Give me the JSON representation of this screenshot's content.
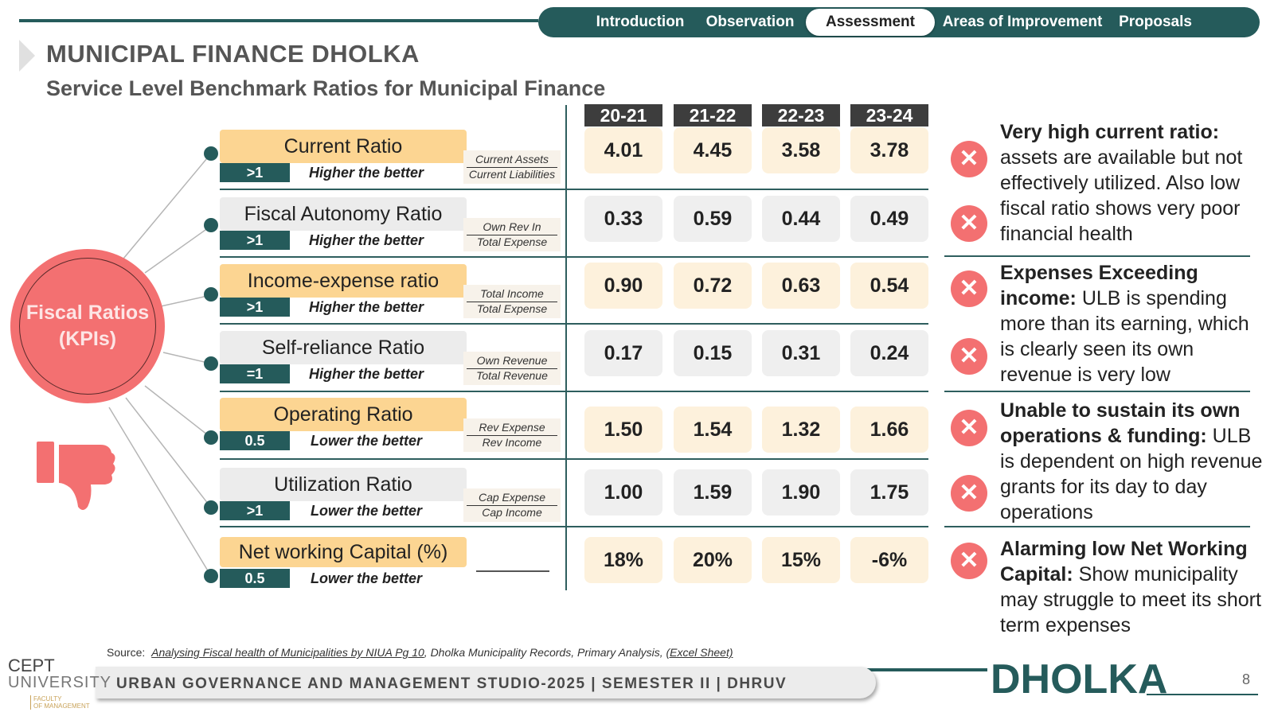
{
  "nav": {
    "items": [
      "Introduction",
      "Observation",
      "Assessment",
      "Areas of Improvement",
      "Proposals"
    ],
    "active": "Assessment"
  },
  "header": {
    "title": "MUNICIPAL FINANCE DHOLKA",
    "subtitle": "Service Level Benchmark Ratios for Municipal Finance"
  },
  "years": [
    "20-21",
    "21-22",
    "22-23",
    "23-24"
  ],
  "kpi_label": "Fiscal Ratios (KPIs)",
  "ratios": [
    {
      "name": "Current Ratio",
      "benchmark": ">1",
      "direction": "Higher the better",
      "numerator": "Current Assets",
      "denominator": "Current Liabilities",
      "values": [
        "4.01",
        "4.45",
        "3.58",
        "3.78"
      ]
    },
    {
      "name": "Fiscal Autonomy Ratio",
      "benchmark": ">1",
      "direction": "Higher the better",
      "numerator": "Own Rev In",
      "denominator": "Total Expense",
      "values": [
        "0.33",
        "0.59",
        "0.44",
        "0.49"
      ]
    },
    {
      "name": "Income-expense ratio",
      "benchmark": ">1",
      "direction": "Higher the better",
      "numerator": "Total Income",
      "denominator": "Total Expense",
      "values": [
        "0.90",
        "0.72",
        "0.63",
        "0.54"
      ]
    },
    {
      "name": "Self-reliance Ratio",
      "benchmark": "=1",
      "direction": "Higher the better",
      "numerator": "Own Revenue",
      "denominator": "Total Revenue",
      "values": [
        "0.17",
        "0.15",
        "0.31",
        "0.24"
      ]
    },
    {
      "name": "Operating Ratio",
      "benchmark": "0.5",
      "direction": "Lower the better",
      "numerator": "Rev Expense",
      "denominator": "Rev Income",
      "values": [
        "1.50",
        "1.54",
        "1.32",
        "1.66"
      ]
    },
    {
      "name": "Utilization Ratio",
      "benchmark": ">1",
      "direction": "Lower the better",
      "numerator": "Cap Expense",
      "denominator": "Cap Income",
      "values": [
        "1.00",
        "1.59",
        "1.90",
        "1.75"
      ]
    },
    {
      "name": "Net working Capital (%)",
      "benchmark": "0.5",
      "direction": "Lower the better",
      "numerator": "",
      "denominator": "",
      "values": [
        "18%",
        "20%",
        "15%",
        "-6%"
      ]
    }
  ],
  "comments": [
    {
      "bold": "Very high current ratio:",
      "text": "assets are available but not effectively utilized. Also low fiscal ratio shows very poor financial health"
    },
    {
      "bold": "Expenses Exceeding income:",
      "text": "ULB is spending more than its earning, which is clearly seen its own revenue is very low"
    },
    {
      "bold": "Unable to sustain its own operations & funding:",
      "text": "ULB is dependent on high revenue grants for its day to day operations"
    },
    {
      "bold": "Alarming low Net Working Capital:",
      "text": "Show municipality may struggle to meet its short term expenses"
    }
  ],
  "status_icon": "close-x-icon",
  "icons": {
    "status": "close-x-icon",
    "thumb": "thumbs-down-icon",
    "title_marker": "triangle-marker-icon"
  },
  "colors": {
    "teal": "#255b5b",
    "accent_red": "#f37071",
    "gold": "#fcd592",
    "grey": "#ececec"
  },
  "source": {
    "label": "Source:",
    "link1": "Analysing Fiscal health of Municipalities by NIUA Pg 10",
    "middle": ", Dholka Municipality Records, Primary Analysis, ",
    "link2": "(Excel Sheet)"
  },
  "footer": {
    "text": "URBAN GOVERNANCE AND MANAGEMENT STUDIO-2025 | SEMESTER II | DHRUV",
    "brand": "DHOLKA",
    "page": "8"
  },
  "logo": {
    "line1": "CEPT",
    "line2": "UNIVERSITY",
    "sub1": "FACULTY",
    "sub2": "OF MANAGEMENT"
  }
}
